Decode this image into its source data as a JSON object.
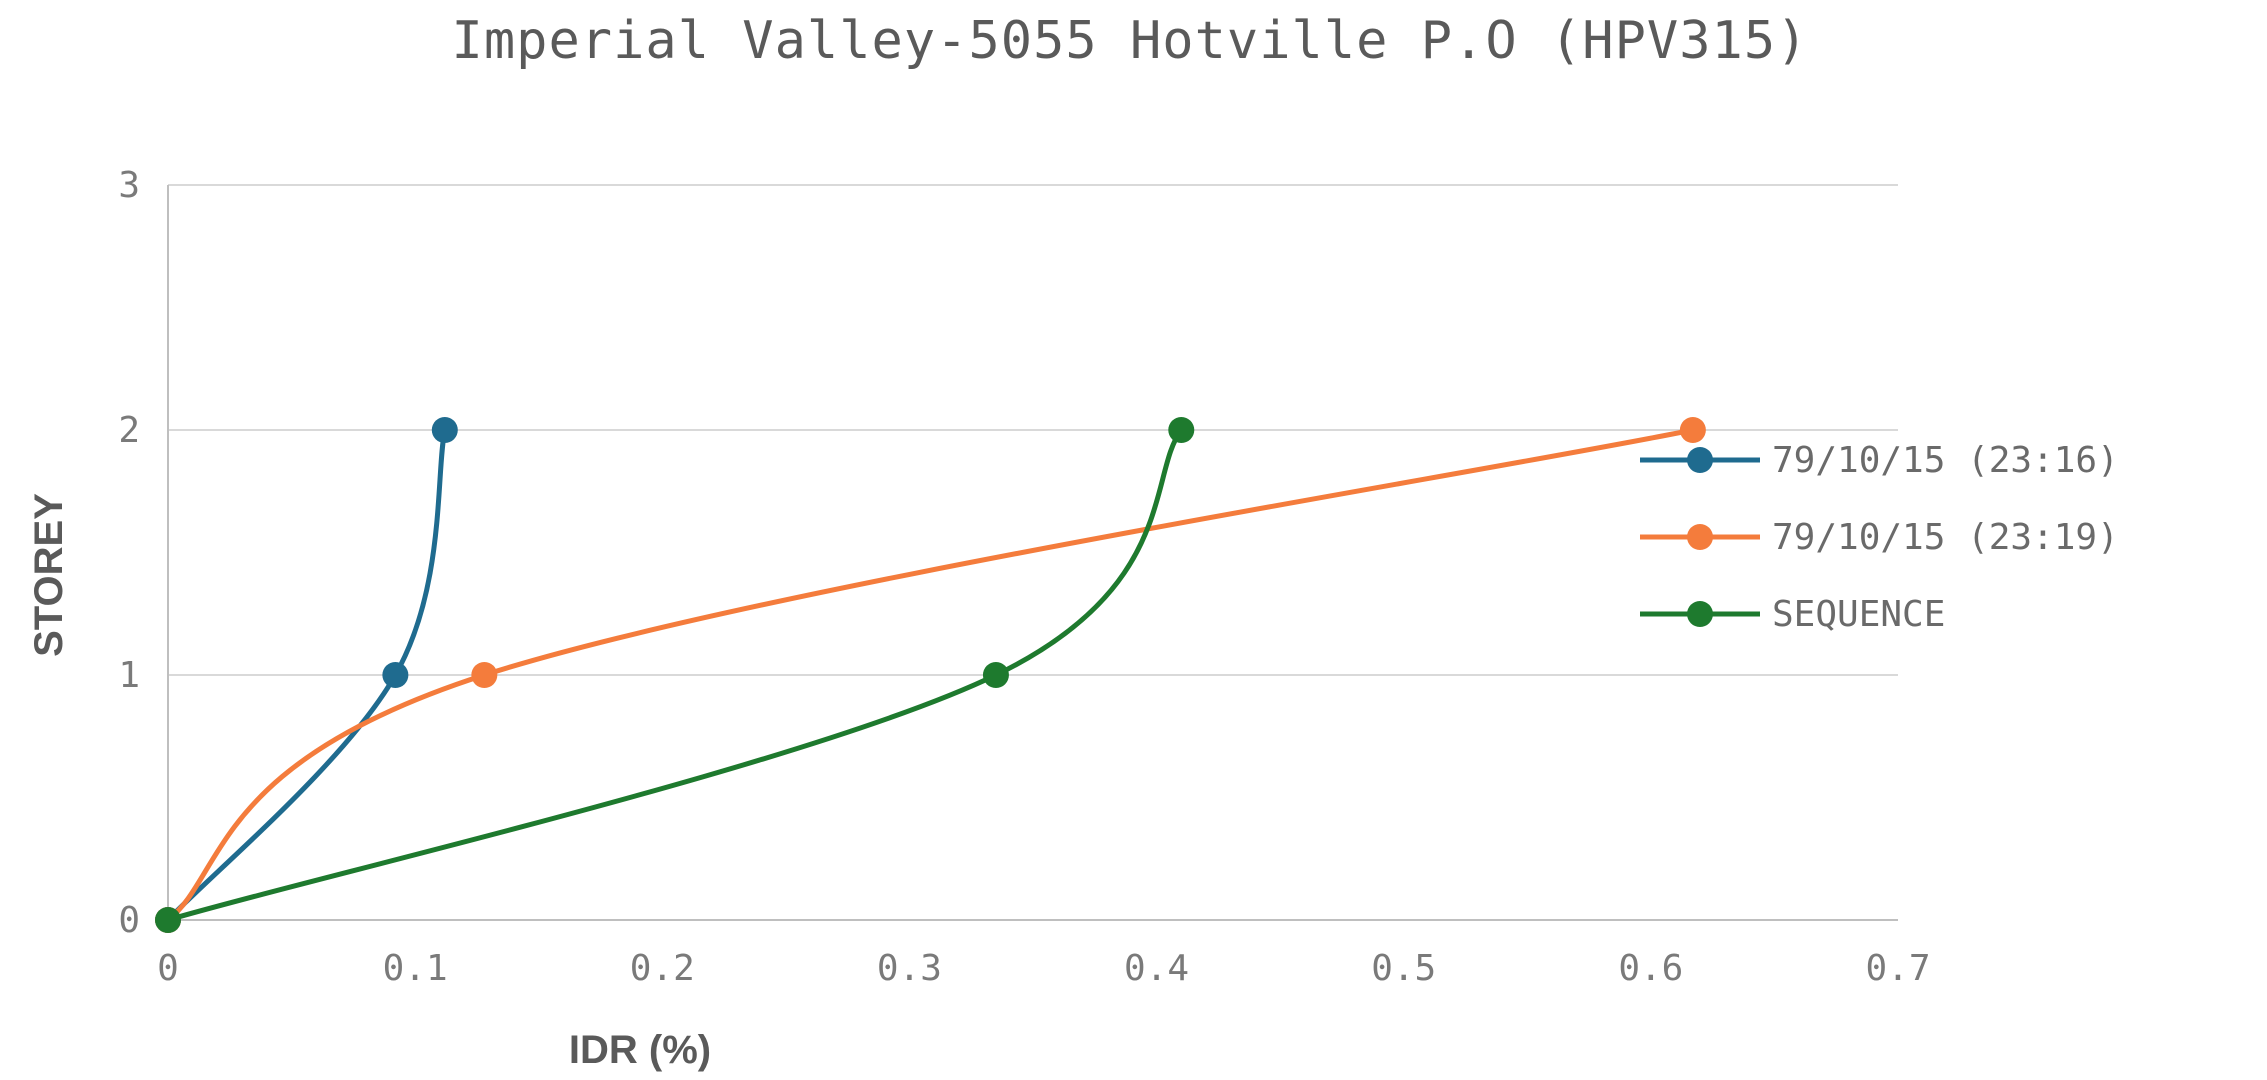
{
  "chart_data": {
    "type": "line",
    "title": "Imperial Valley-5055 Hotville P.O (HPV315)",
    "xlabel": "IDR (%)",
    "ylabel": "STOREY",
    "xlim": [
      0,
      0.7
    ],
    "ylim": [
      0,
      3
    ],
    "x_ticks": [
      "0",
      "0.1",
      "0.2",
      "0.3",
      "0.4",
      "0.5",
      "0.6",
      "0.7"
    ],
    "y_ticks": [
      "0",
      "1",
      "2",
      "3"
    ],
    "grid": "horizontal",
    "legend_position": "right",
    "smooth": true,
    "series": [
      {
        "name": "79/10/15 (23:16)",
        "color": "#1f6b8f",
        "points": [
          [
            0,
            0
          ],
          [
            0.092,
            1
          ],
          [
            0.112,
            2
          ]
        ]
      },
      {
        "name": "79/10/15 (23:19)",
        "color": "#f47c3c",
        "points": [
          [
            0,
            0
          ],
          [
            0.128,
            1
          ],
          [
            0.617,
            2
          ]
        ]
      },
      {
        "name": "SEQUENCE",
        "color": "#1e7a2e",
        "points": [
          [
            0,
            0
          ],
          [
            0.335,
            1
          ],
          [
            0.41,
            2
          ]
        ]
      }
    ]
  }
}
